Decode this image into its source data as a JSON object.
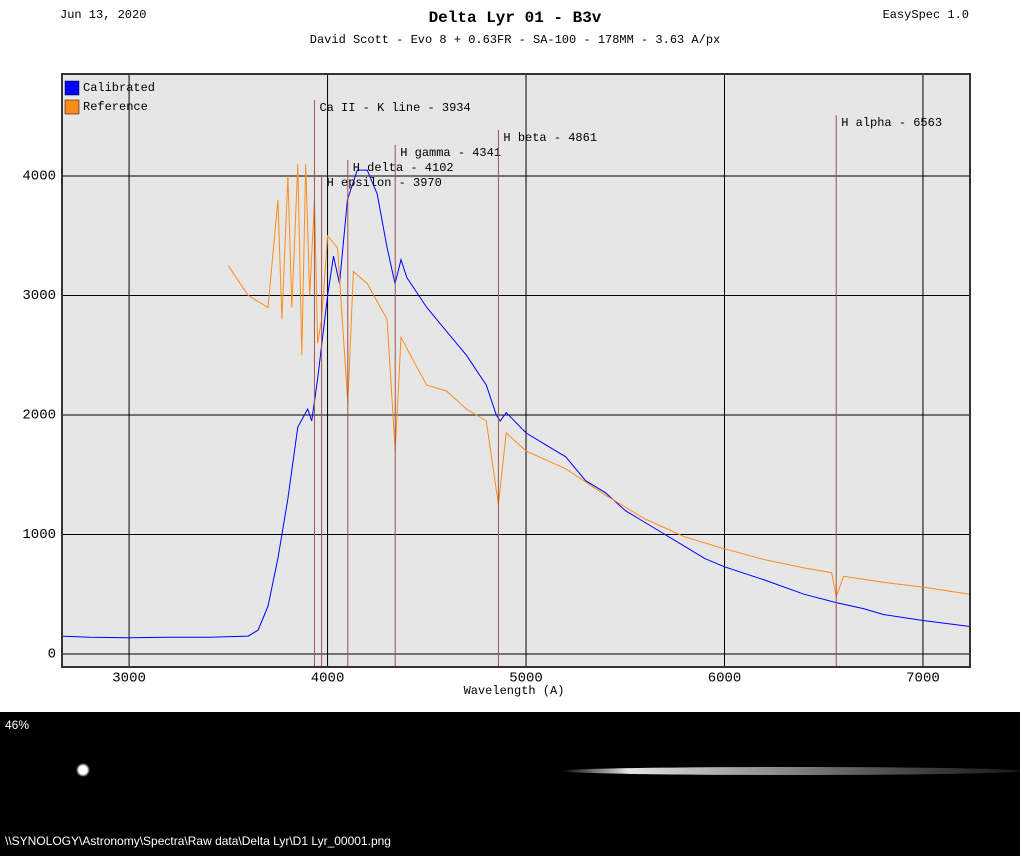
{
  "header": {
    "date": "Jun 13, 2020",
    "app": "EasySpec 1.0"
  },
  "chart_data": {
    "type": "line",
    "title": "Delta Lyr 01 - B3v",
    "subtitle": "David Scott - Evo 8 + 0.63FR - SA-100 - 178MM - 3.63 A/px",
    "x_label": "Wavelength (A)",
    "xlim": [
      2662,
      7237
    ],
    "xticks": [
      3000,
      4000,
      5000,
      6000,
      7000
    ],
    "ylim": [
      -109,
      4854
    ],
    "yticks": [
      0,
      1000,
      2000,
      3000,
      4000
    ],
    "grid": true,
    "legend": "top-left",
    "series": [
      {
        "name": "Calibrated",
        "color": "#0000ff",
        "x": [
          2662,
          2800,
          3000,
          3200,
          3400,
          3600,
          3650,
          3700,
          3750,
          3800,
          3850,
          3900,
          3920,
          3950,
          4000,
          4030,
          4060,
          4100,
          4150,
          4200,
          4250,
          4300,
          4340,
          4370,
          4400,
          4500,
          4600,
          4700,
          4800,
          4850,
          4870,
          4900,
          5000,
          5100,
          5200,
          5300,
          5400,
          5500,
          5600,
          5700,
          5800,
          5900,
          6000,
          6200,
          6400,
          6563,
          6700,
          6800,
          7000,
          7237
        ],
        "values": [
          150,
          140,
          135,
          140,
          140,
          150,
          200,
          400,
          800,
          1300,
          1900,
          2050,
          1950,
          2300,
          3000,
          3330,
          3100,
          3800,
          4050,
          4050,
          3850,
          3400,
          3100,
          3300,
          3150,
          2900,
          2700,
          2500,
          2250,
          2000,
          1950,
          2020,
          1850,
          1750,
          1650,
          1450,
          1350,
          1200,
          1100,
          1000,
          900,
          800,
          730,
          620,
          500,
          430,
          380,
          330,
          280,
          230
        ]
      },
      {
        "name": "Reference",
        "color": "#ff8c1a",
        "x": [
          3500,
          3600,
          3700,
          3750,
          3770,
          3800,
          3820,
          3850,
          3870,
          3890,
          3910,
          3934,
          3950,
          3970,
          4000,
          4050,
          4102,
          4130,
          4200,
          4300,
          4341,
          4370,
          4450,
          4500,
          4600,
          4700,
          4800,
          4861,
          4900,
          5000,
          5200,
          5400,
          5600,
          5800,
          6000,
          6200,
          6400,
          6540,
          6563,
          6600,
          6800,
          7000,
          7237
        ],
        "values": [
          3250,
          3000,
          2900,
          3800,
          2800,
          4000,
          2900,
          4100,
          2500,
          4100,
          3000,
          3800,
          2600,
          2800,
          3500,
          3400,
          2100,
          3200,
          3100,
          2800,
          1700,
          2650,
          2400,
          2250,
          2200,
          2050,
          1950,
          1250,
          1850,
          1700,
          1550,
          1330,
          1130,
          980,
          880,
          790,
          720,
          680,
          480,
          650,
          600,
          560,
          500
        ]
      }
    ],
    "annotations": [
      {
        "x": 3934,
        "label": "Ca II - K line - 3934"
      },
      {
        "x": 3970,
        "label": "H epsilon - 3970"
      },
      {
        "x": 4102,
        "label": "H delta - 4102"
      },
      {
        "x": 4341,
        "label": "H gamma - 4341"
      },
      {
        "x": 4861,
        "label": "H beta - 4861"
      },
      {
        "x": 6563,
        "label": "H alpha - 6563"
      }
    ]
  },
  "image_panel": {
    "zoom": "46%",
    "path": "\\\\SYNOLOGY\\Astronomy\\Spectra\\Raw data\\Delta Lyr\\D1 Lyr_00001.png"
  }
}
